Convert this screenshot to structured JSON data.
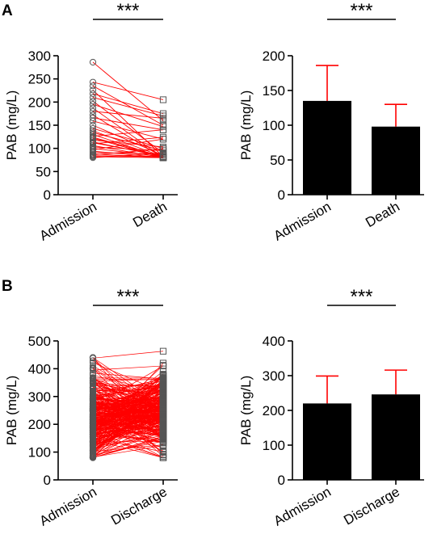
{
  "panels": [
    {
      "letter": "A"
    },
    {
      "letter": "B"
    }
  ],
  "chart_data": [
    {
      "panel": "A",
      "type": "line",
      "style": "paired before-after lines",
      "categories": [
        "Admission",
        "Death"
      ],
      "ylabel": "PAB (mg/L)",
      "ylim": [
        0,
        300
      ],
      "yticks": [
        0,
        50,
        100,
        150,
        200,
        250,
        300
      ],
      "significance": "***",
      "marker_admission": "circle",
      "marker_second": "square",
      "line_color": "#ff0000",
      "marker_color": "#555555",
      "pairs": [
        [
          286,
          160
        ],
        [
          243,
          205
        ],
        [
          235,
          150
        ],
        [
          226,
          82
        ],
        [
          218,
          175
        ],
        [
          210,
          170
        ],
        [
          202,
          90
        ],
        [
          195,
          147
        ],
        [
          187,
          80
        ],
        [
          180,
          165
        ],
        [
          172,
          80
        ],
        [
          166,
          140
        ],
        [
          159,
          120
        ],
        [
          150,
          85
        ],
        [
          143,
          100
        ],
        [
          138,
          82
        ],
        [
          134,
          95
        ],
        [
          130,
          80
        ],
        [
          126,
          140
        ],
        [
          122,
          80
        ],
        [
          118,
          103
        ],
        [
          114,
          82
        ],
        [
          110,
          124
        ],
        [
          106,
          80
        ],
        [
          103,
          95
        ],
        [
          100,
          82
        ],
        [
          97,
          120
        ],
        [
          94,
          80
        ],
        [
          91,
          88
        ],
        [
          88,
          80
        ],
        [
          86,
          99
        ],
        [
          84,
          82
        ],
        [
          82,
          80
        ],
        [
          80,
          90
        ],
        [
          124,
          82
        ],
        [
          112,
          85
        ]
      ]
    },
    {
      "panel": "A",
      "type": "bar",
      "categories": [
        "Admission",
        "Death"
      ],
      "values": [
        135,
        98
      ],
      "error_upper": [
        51,
        32
      ],
      "ylabel": "PAB (mg/L)",
      "ylim": [
        0,
        200
      ],
      "yticks": [
        0,
        50,
        100,
        150,
        200
      ],
      "significance": "***",
      "bar_color": "#000000",
      "error_color": "#ff0000"
    },
    {
      "panel": "B",
      "type": "line",
      "style": "paired before-after lines",
      "categories": [
        "Admission",
        "Discharge"
      ],
      "ylabel": "PAB (mg/L)",
      "ylim": [
        0,
        500
      ],
      "yticks": [
        0,
        100,
        200,
        300,
        400,
        500
      ],
      "significance": "***",
      "marker_admission": "circle",
      "marker_second": "square",
      "line_color": "#ff0000",
      "marker_color": "#555555",
      "highlight_pairs": [
        [
          438,
          463
        ],
        [
          395,
          410
        ],
        [
          150,
          420
        ],
        [
          120,
          380
        ],
        [
          360,
          90
        ],
        [
          300,
          85
        ]
      ],
      "generated": {
        "count": 300,
        "seed": 7,
        "admission_mean": 220,
        "admission_sd": 78,
        "second_mean": 246,
        "second_sd": 70,
        "min": 80,
        "max": 440
      }
    },
    {
      "panel": "B",
      "type": "bar",
      "categories": [
        "Admission",
        "Discharge"
      ],
      "values": [
        220,
        246
      ],
      "error_upper": [
        79,
        70
      ],
      "ylabel": "PAB (mg/L)",
      "ylim": [
        0,
        400
      ],
      "yticks": [
        0,
        100,
        200,
        300,
        400
      ],
      "significance": "***",
      "bar_color": "#000000",
      "error_color": "#ff0000"
    }
  ]
}
